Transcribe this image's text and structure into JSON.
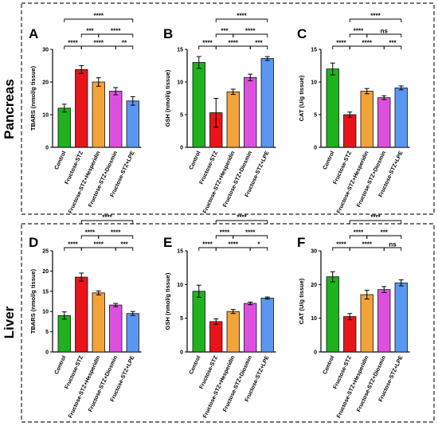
{
  "row_labels": [
    "Pancreas",
    "Liver"
  ],
  "colors": [
    "#1fb11f",
    "#e8141a",
    "#f2a33a",
    "#df4fdf",
    "#5a97f2"
  ],
  "chart_data": [
    {
      "type": "bar",
      "letter": "A",
      "title": "",
      "ylabel": "TBARS (nmol/g tissue)",
      "xlabel": "",
      "categories": [
        "Control",
        "Fructose-STZ",
        "Fructose-STZ+Hesperidin",
        "Fructose-STZ+Diosmin",
        "Fructose-STZ+LPE"
      ],
      "values": [
        12,
        23.8,
        20,
        17.2,
        14.2
      ],
      "errors": [
        1.2,
        1.2,
        1.3,
        1.1,
        1.3
      ],
      "ylim": [
        0,
        30
      ],
      "yticks": [
        0,
        10,
        20,
        30
      ],
      "comparisons": [
        {
          "from": 0,
          "to": 4,
          "label": "****"
        },
        {
          "from": 1,
          "to": 2,
          "label": "***"
        },
        {
          "from": 2,
          "to": 4,
          "label": "****"
        },
        {
          "from": 0,
          "to": 1,
          "label": "****"
        },
        {
          "from": 1,
          "to": 3,
          "label": "****"
        },
        {
          "from": 3,
          "to": 4,
          "label": "**"
        }
      ]
    },
    {
      "type": "bar",
      "letter": "B",
      "title": "",
      "ylabel": "GSH (nmol/g tissue)",
      "xlabel": "",
      "categories": [
        "Control",
        "Fructose-STZ",
        "Fructose-STZ+Hesperidin",
        "Fructose-STZ+Diosmin",
        "Fructose-STZ+LPE"
      ],
      "values": [
        13,
        5.3,
        8.5,
        10.7,
        13.6
      ],
      "errors": [
        0.9,
        2.2,
        0.4,
        0.5,
        0.3
      ],
      "ylim": [
        0,
        15
      ],
      "yticks": [
        0,
        5,
        10,
        15
      ],
      "comparisons": [
        {
          "from": 1,
          "to": 4,
          "label": "****"
        },
        {
          "from": 1,
          "to": 2,
          "label": "***"
        },
        {
          "from": 2,
          "to": 4,
          "label": "****"
        },
        {
          "from": 0,
          "to": 1,
          "label": "****"
        },
        {
          "from": 1,
          "to": 3,
          "label": "****"
        },
        {
          "from": 3,
          "to": 4,
          "label": "***"
        }
      ]
    },
    {
      "type": "bar",
      "letter": "C",
      "title": "",
      "ylabel": "CAT (U/g tissue)",
      "xlabel": "",
      "categories": [
        "Control",
        "Fructose-STZ",
        "Fructose-STZ+Hesperidin",
        "Fructose-STZ+Diosmin",
        "Fructose-STZ+LPE"
      ],
      "values": [
        12,
        5,
        8.6,
        7.6,
        9.1
      ],
      "errors": [
        0.9,
        0.4,
        0.4,
        0.3,
        0.3
      ],
      "ylim": [
        0,
        15
      ],
      "yticks": [
        0,
        5,
        10,
        15
      ],
      "comparisons": [
        {
          "from": 1,
          "to": 4,
          "label": "****"
        },
        {
          "from": 1,
          "to": 2,
          "label": "****"
        },
        {
          "from": 2,
          "to": 4,
          "label": "ns"
        },
        {
          "from": 0,
          "to": 1,
          "label": "****"
        },
        {
          "from": 1,
          "to": 3,
          "label": "****"
        },
        {
          "from": 3,
          "to": 4,
          "label": "***"
        }
      ]
    },
    {
      "type": "bar",
      "letter": "D",
      "title": "",
      "ylabel": "TBARS (nmol/g tissue)",
      "xlabel": "",
      "categories": [
        "Control",
        "Fructose-STZ",
        "Fructose-STZ+Hesperidin",
        "Fructose-STZ+Diosmin",
        "Fructose-STZ+LPE"
      ],
      "values": [
        9,
        18.5,
        14.6,
        11.6,
        9.5
      ],
      "errors": [
        0.9,
        1.0,
        0.5,
        0.4,
        0.5
      ],
      "ylim": [
        0,
        25
      ],
      "yticks": [
        0,
        5,
        10,
        15,
        20,
        25
      ],
      "comparisons": [
        {
          "from": 1,
          "to": 4,
          "label": "****"
        },
        {
          "from": 1,
          "to": 2,
          "label": "****"
        },
        {
          "from": 2,
          "to": 4,
          "label": "****"
        },
        {
          "from": 0,
          "to": 1,
          "label": "****"
        },
        {
          "from": 1,
          "to": 3,
          "label": "****"
        },
        {
          "from": 3,
          "to": 4,
          "label": "***"
        }
      ]
    },
    {
      "type": "bar",
      "letter": "E",
      "title": "",
      "ylabel": "GSH (nmol/g tissue)",
      "xlabel": "",
      "categories": [
        "Control",
        "Fructose-STZ",
        "Fructose-STZ+Hesperidin",
        "Fructose-STZ+Diosmin",
        "Fructose-STZ+LPE"
      ],
      "values": [
        9,
        4.5,
        6,
        7.2,
        8
      ],
      "errors": [
        0.9,
        0.4,
        0.3,
        0.2,
        0.15
      ],
      "ylim": [
        0,
        15
      ],
      "yticks": [
        0,
        5,
        10,
        15
      ],
      "comparisons": [
        {
          "from": 1,
          "to": 4,
          "label": "****"
        },
        {
          "from": 1,
          "to": 2,
          "label": "****"
        },
        {
          "from": 2,
          "to": 4,
          "label": "****"
        },
        {
          "from": 0,
          "to": 1,
          "label": "****"
        },
        {
          "from": 1,
          "to": 3,
          "label": "****"
        },
        {
          "from": 3,
          "to": 4,
          "label": "*"
        }
      ]
    },
    {
      "type": "bar",
      "letter": "F",
      "title": "",
      "ylabel": "CAT (U/g tissue)",
      "xlabel": "",
      "categories": [
        "Control",
        "Fructose-STZ",
        "Fructose-STZ+Hesperidin",
        "Fructose-STZ+Diosmin",
        "Fructose-STZ+LPE"
      ],
      "values": [
        22.3,
        10.5,
        17,
        18.5,
        20.5
      ],
      "errors": [
        1.5,
        0.9,
        1.3,
        0.9,
        0.9
      ],
      "ylim": [
        0,
        30
      ],
      "yticks": [
        0,
        10,
        20,
        30
      ],
      "comparisons": [
        {
          "from": 1,
          "to": 4,
          "label": "****"
        },
        {
          "from": 1,
          "to": 2,
          "label": "****"
        },
        {
          "from": 2,
          "to": 4,
          "label": "***"
        },
        {
          "from": 0,
          "to": 1,
          "label": "****"
        },
        {
          "from": 1,
          "to": 3,
          "label": "****"
        },
        {
          "from": 3,
          "to": 4,
          "label": "ns"
        }
      ]
    }
  ]
}
